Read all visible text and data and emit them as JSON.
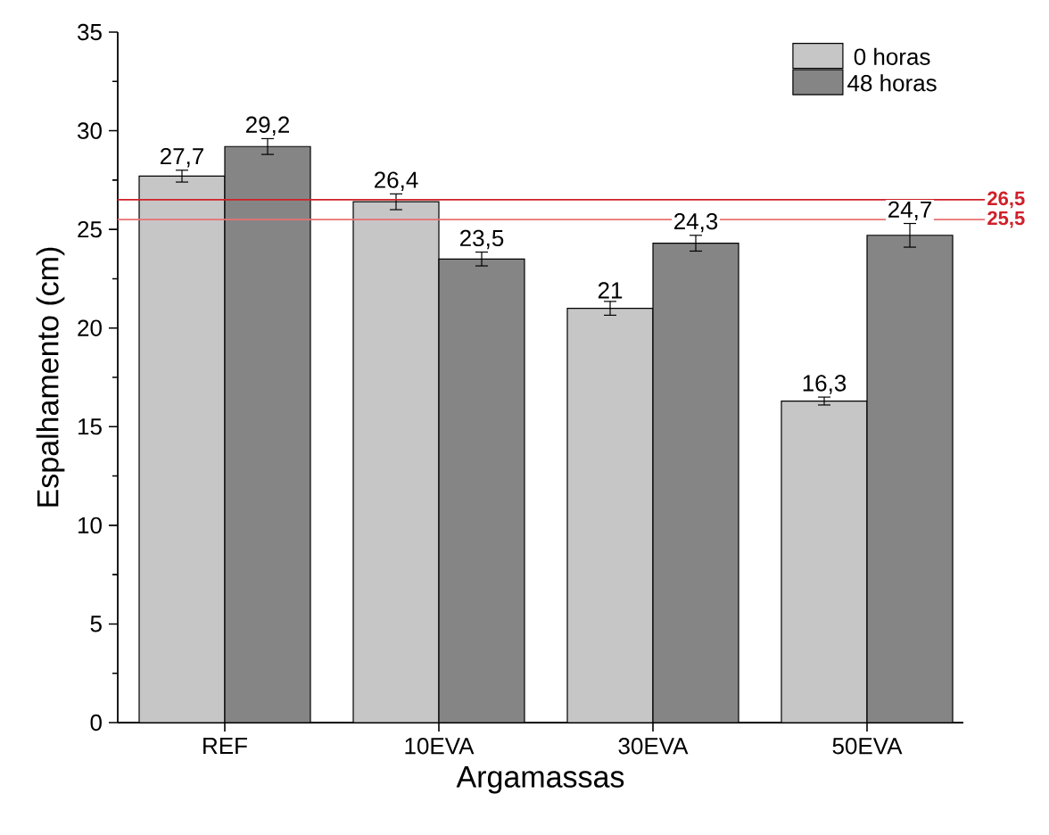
{
  "chart_data": {
    "type": "bar",
    "xlabel": "Argamassas",
    "ylabel": "Espalhamento (cm)",
    "categories": [
      "REF",
      "10EVA",
      "30EVA",
      "50EVA"
    ],
    "series": [
      {
        "name": "0 horas",
        "color": "#c6c6c6",
        "values": [
          27.7,
          26.4,
          21,
          16.3
        ],
        "errors": [
          0.3,
          0.4,
          0.35,
          0.2
        ],
        "value_labels": [
          "27,7",
          "26,4",
          "21",
          "16,3"
        ]
      },
      {
        "name": "48 horas",
        "color": "#858585",
        "values": [
          29.2,
          23.5,
          24.3,
          24.7
        ],
        "errors": [
          0.4,
          0.35,
          0.4,
          0.6
        ],
        "value_labels": [
          "29,2",
          "23,5",
          "24,3",
          "24,7"
        ]
      }
    ],
    "ylim": [
      0,
      35
    ],
    "yticks": [
      0,
      5,
      10,
      15,
      20,
      25,
      30,
      35
    ],
    "ref_lines": [
      {
        "axis": "y",
        "value": 26.5,
        "label": "26,5",
        "color": "#d0202a"
      },
      {
        "axis": "y",
        "value": 25.5,
        "label": "25,5",
        "color": "#e87070"
      }
    ],
    "legend": "top right",
    "grid": false
  }
}
